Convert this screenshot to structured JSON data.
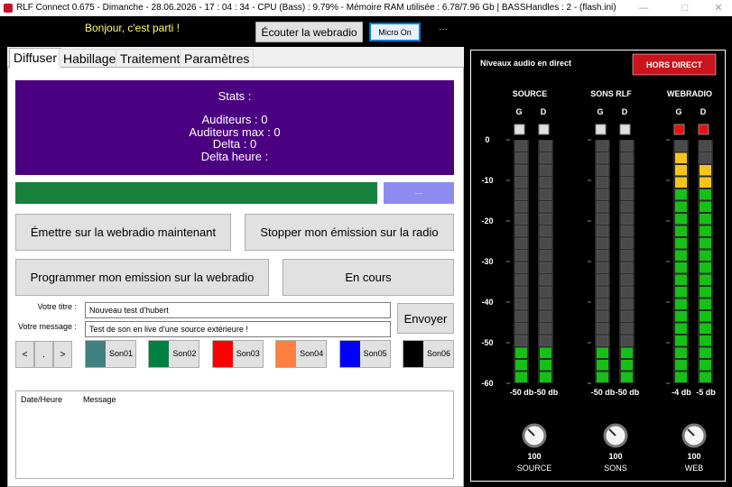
{
  "window": {
    "title": "RLF Connect 0.675 - Dimanche - 28.06.2026 - 17 : 04 : 34 - CPU (Bass) : 9.79% - Mémoire RAM utilisée : 6.78/7.96 Gb | BASSHandles : 2 - (flash.ini)"
  },
  "toolbar": {
    "greeting": "Bonjour, c'est parti !",
    "listen_button": "Écouter la webradio",
    "mic_button": "Micro On",
    "more": "···"
  },
  "tabs": [
    "Diffuser",
    "Habillage",
    "Traitement",
    "Paramètres"
  ],
  "stats": {
    "title": "Stats :",
    "lines": [
      "Auditeurs : 0",
      "Auditeurs max : 0",
      "Delta : 0",
      "Delta heure :"
    ]
  },
  "progress": {
    "color": "#17803d",
    "button": "···"
  },
  "actions": [
    "Émettre sur la webradio maintenant",
    "Stopper mon émission sur la radio",
    "Programmer mon emission sur la webradio",
    "En cours"
  ],
  "form": {
    "title_label": "Votre titre :",
    "title_value": "Nouveau test d'hubert",
    "message_label": "Votre message :",
    "message_value": "Test de son en live d'une source extérieure !",
    "send": "Envoyer"
  },
  "nav": [
    "<",
    ".",
    ">"
  ],
  "sounds": [
    {
      "label": "Son01",
      "color": "#408080"
    },
    {
      "label": "Son02",
      "color": "#008040"
    },
    {
      "label": "Son03",
      "color": "#ff0000"
    },
    {
      "label": "Son04",
      "color": "#ff8040"
    },
    {
      "label": "Son05",
      "color": "#0000ff"
    },
    {
      "label": "Son06",
      "color": "#000000"
    }
  ],
  "log": {
    "columns": [
      "Date/Heure",
      "Message"
    ]
  },
  "levels": {
    "title": "Niveaux audio en direct",
    "status": "HORS DIRECT",
    "ylim": [
      -60,
      0
    ],
    "yticks": [
      0,
      -10,
      -20,
      -30,
      -40,
      -50,
      -60
    ],
    "groups": [
      {
        "name": "SOURCE",
        "channels": [
          "G",
          "D"
        ],
        "indicator_color": "#e0e0e0",
        "values": [
          -50,
          -50
        ],
        "value_labels": [
          "-50 db",
          "-50 db"
        ],
        "knob": 100,
        "knob_label": "SOURCE"
      },
      {
        "name": "SONS RLF",
        "channels": [
          "G",
          "D"
        ],
        "indicator_color": "#e0e0e0",
        "values": [
          -50,
          -50
        ],
        "value_labels": [
          "-50 db",
          "-50 db"
        ],
        "knob": 100,
        "knob_label": "SONS"
      },
      {
        "name": "WEBRADIO",
        "channels": [
          "G",
          "D"
        ],
        "indicator_color": "#e81010",
        "values": [
          -4,
          -5
        ],
        "value_labels": [
          "-4 db",
          "-5 db"
        ],
        "knob": 100,
        "knob_label": "WEB"
      }
    ]
  }
}
